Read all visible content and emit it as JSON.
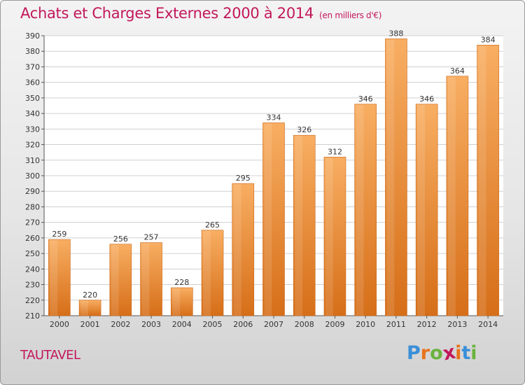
{
  "header": {
    "title": "Achats et Charges Externes 2000 à 2014",
    "unit": "(en milliers d'€)"
  },
  "footer": {
    "town": "TAUTAVEL",
    "logo": [
      "P",
      "r",
      "o",
      "x",
      "i",
      "t",
      "i"
    ]
  },
  "colors": {
    "title": "#c2185b",
    "bar_light": "#f7a95a",
    "bar_dark": "#d9731c",
    "grid": "#d0d0d0",
    "logo": [
      "#3a8fd8",
      "#e8731c",
      "#6cb33f",
      "#c2185b",
      "#e8731c",
      "#3a8fd8",
      "#6cb33f"
    ]
  },
  "chart_data": {
    "type": "bar",
    "title": "Achats et Charges Externes 2000 à 2014",
    "subtitle": "(en milliers d'€)",
    "categories": [
      "2000",
      "2001",
      "2002",
      "2003",
      "2004",
      "2005",
      "2006",
      "2007",
      "2008",
      "2009",
      "2010",
      "2011",
      "2012",
      "2013",
      "2014"
    ],
    "values": [
      259,
      220,
      256,
      257,
      228,
      265,
      295,
      334,
      326,
      312,
      346,
      388,
      346,
      364,
      384
    ],
    "ylim": [
      210,
      390
    ],
    "yticks": [
      210,
      220,
      230,
      240,
      250,
      260,
      270,
      280,
      290,
      300,
      310,
      320,
      330,
      340,
      350,
      360,
      370,
      380,
      390
    ],
    "grid": true,
    "legend": "none"
  }
}
